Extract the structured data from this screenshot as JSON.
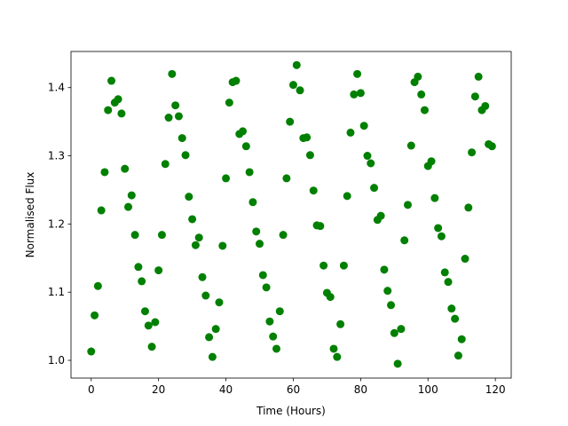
{
  "chart_data": {
    "type": "scatter",
    "x_label": "Time (Hours)",
    "y_label": "Normalised Flux",
    "color": "#008000",
    "x": [
      0,
      1,
      2,
      3,
      4,
      5,
      6,
      7,
      8,
      9,
      10,
      11,
      12,
      13,
      14,
      15,
      16,
      17,
      18,
      19,
      20,
      21,
      22,
      23,
      24,
      25,
      26,
      27,
      28,
      29,
      30,
      31,
      32,
      33,
      34,
      35,
      36,
      37,
      38,
      39,
      40,
      41,
      42,
      43,
      44,
      45,
      46,
      47,
      48,
      49,
      50,
      51,
      52,
      53,
      54,
      55,
      56,
      57,
      58,
      59,
      60,
      61,
      62,
      63,
      64,
      65,
      66,
      67,
      68,
      69,
      70,
      71,
      72,
      73,
      74,
      75,
      76,
      77,
      78,
      79,
      80,
      81,
      82,
      83,
      84,
      85,
      86,
      87,
      88,
      89,
      90,
      91,
      92,
      93,
      94,
      95,
      96,
      97,
      98,
      99,
      100,
      101,
      102,
      103,
      104,
      105,
      106,
      107,
      108,
      109,
      110,
      111,
      112,
      113,
      114,
      115,
      116,
      117,
      118,
      119
    ],
    "values": [
      1.013,
      1.066,
      1.109,
      1.22,
      1.276,
      1.367,
      1.41,
      1.378,
      1.383,
      1.362,
      1.281,
      1.225,
      1.242,
      1.184,
      1.137,
      1.116,
      1.072,
      1.051,
      1.02,
      1.056,
      1.132,
      1.184,
      1.288,
      1.356,
      1.42,
      1.374,
      1.358,
      1.326,
      1.301,
      1.24,
      1.207,
      1.169,
      1.18,
      1.122,
      1.095,
      1.034,
      1.005,
      1.046,
      1.085,
      1.168,
      1.267,
      1.378,
      1.408,
      1.41,
      1.332,
      1.336,
      1.314,
      1.276,
      1.232,
      1.189,
      1.171,
      1.125,
      1.107,
      1.057,
      1.035,
      1.017,
      1.072,
      1.184,
      1.267,
      1.35,
      1.404,
      1.433,
      1.396,
      1.326,
      1.327,
      1.301,
      1.249,
      1.198,
      1.197,
      1.139,
      1.099,
      1.093,
      1.017,
      1.005,
      1.053,
      1.139,
      1.241,
      1.334,
      1.39,
      1.42,
      1.392,
      1.344,
      1.3,
      1.289,
      1.253,
      1.206,
      1.212,
      1.133,
      1.102,
      1.081,
      1.04,
      0.995,
      1.046,
      1.176,
      1.228,
      1.315,
      1.408,
      1.416,
      1.39,
      1.367,
      1.285,
      1.292,
      1.238,
      1.194,
      1.182,
      1.129,
      1.115,
      1.076,
      1.061,
      1.007,
      1.031,
      1.149,
      1.224,
      1.305,
      1.387,
      1.416,
      1.367,
      1.373,
      1.317,
      1.314
    ],
    "xlim": [
      -6,
      124.7
    ],
    "ylim": [
      0.974,
      1.453
    ],
    "xticks": [
      0,
      20,
      40,
      60,
      80,
      100,
      120
    ],
    "yticks": [
      {
        "value": 1,
        "label": "1.0"
      },
      1.1,
      1.2,
      1.3,
      1.4
    ]
  }
}
